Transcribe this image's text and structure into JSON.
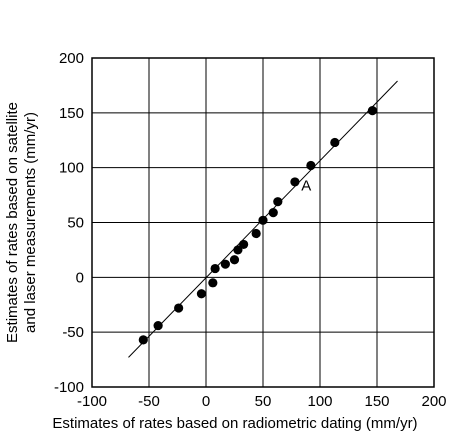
{
  "chart_data": {
    "type": "scatter",
    "title": "",
    "xlabel": "Estimates of rates based on radiometric dating (mm/yr)",
    "ylabel_lines": [
      "Estimates of rates based on satellite",
      "and laser measurements (mm/yr)"
    ],
    "xlim": [
      -100,
      200
    ],
    "ylim": [
      -100,
      200
    ],
    "x_ticks": [
      -100,
      -50,
      0,
      50,
      100,
      150,
      200
    ],
    "y_ticks": [
      -100,
      -50,
      0,
      50,
      100,
      150,
      200
    ],
    "x_tick_labels": [
      "-100",
      "-50",
      "0",
      "50",
      "100",
      "150",
      "200"
    ],
    "y_tick_labels": [
      "-100",
      "-50",
      "0",
      "50",
      "100",
      "150",
      "200"
    ],
    "grid": true,
    "point_color": "#000000",
    "points": [
      {
        "x": -55,
        "y": -57
      },
      {
        "x": -42,
        "y": -44
      },
      {
        "x": -24,
        "y": -28
      },
      {
        "x": -4,
        "y": -15
      },
      {
        "x": 6,
        "y": -5
      },
      {
        "x": 8,
        "y": 8
      },
      {
        "x": 17,
        "y": 12
      },
      {
        "x": 25,
        "y": 16
      },
      {
        "x": 28,
        "y": 25
      },
      {
        "x": 33,
        "y": 30
      },
      {
        "x": 44,
        "y": 40
      },
      {
        "x": 50,
        "y": 52
      },
      {
        "x": 59,
        "y": 59
      },
      {
        "x": 63,
        "y": 69
      },
      {
        "x": 78,
        "y": 87
      },
      {
        "x": 92,
        "y": 102
      },
      {
        "x": 113,
        "y": 123
      },
      {
        "x": 146,
        "y": 152
      }
    ],
    "fit_line": {
      "x": [
        -68,
        168
      ],
      "y": [
        -73,
        179
      ]
    },
    "annotations": [
      {
        "text": "A",
        "x": 88,
        "y": 79
      }
    ]
  }
}
